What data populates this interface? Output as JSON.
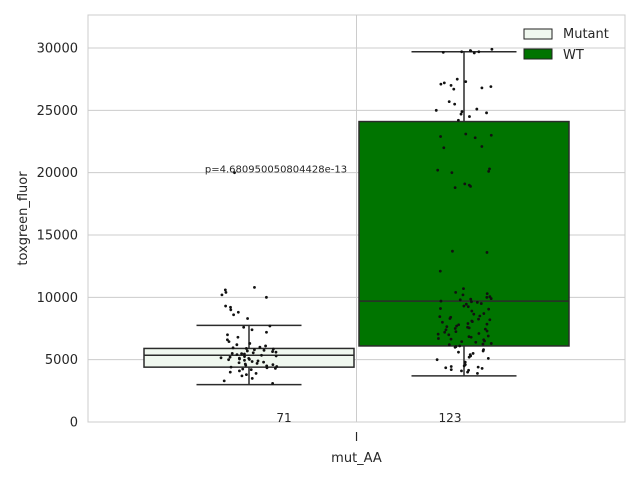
{
  "chart_data": {
    "type": "box",
    "title": "",
    "xlabel": "mut_AA",
    "ylabel": "toxgreen_fluor",
    "categories": [
      "I"
    ],
    "ylim": [
      0,
      32500
    ],
    "yticks": [
      0,
      5000,
      10000,
      15000,
      20000,
      25000,
      30000
    ],
    "grid": true,
    "legend": {
      "placement": "top-right",
      "entries": [
        "Mutant",
        "WT"
      ]
    },
    "annotation": "p=4.680950050804428e-13",
    "series": [
      {
        "name": "Mutant",
        "color": "#f0f8ef",
        "count_label": "71",
        "whisker_low": 3000,
        "q1": 4400,
        "median": 5350,
        "q3": 5900,
        "whisker_high": 7750,
        "points": [
          3100,
          3300,
          3500,
          3700,
          3800,
          3900,
          4000,
          4100,
          4200,
          4300,
          4350,
          4400,
          4450,
          4500,
          4550,
          4600,
          4650,
          4700,
          4750,
          4800,
          4850,
          4900,
          4950,
          5000,
          5050,
          5100,
          5150,
          5200,
          5250,
          5300,
          5350,
          5400,
          5450,
          5500,
          5550,
          5600,
          5650,
          5700,
          5750,
          5800,
          5850,
          5900,
          5950,
          6000,
          6100,
          6200,
          6300,
          6450,
          6600,
          6800,
          7000,
          7200,
          7400,
          7600,
          7700,
          8300,
          8600,
          8800,
          9000,
          9200,
          9300,
          10000,
          10200,
          10400,
          10600,
          10800,
          20000,
          4250,
          5120,
          5480,
          5020
        ]
      },
      {
        "name": "WT",
        "color": "#007400",
        "count_label": "123",
        "whisker_low": 3700,
        "q1": 6100,
        "median": 9700,
        "q3": 24100,
        "whisker_high": 29700,
        "points": [
          3900,
          4000,
          4100,
          4200,
          4300,
          4400,
          4500,
          4600,
          4800,
          5000,
          5200,
          5400,
          5600,
          5800,
          6000,
          6100,
          6200,
          6300,
          6400,
          6500,
          6600,
          6700,
          6800,
          6900,
          7000,
          7100,
          7200,
          7300,
          7400,
          7500,
          7600,
          7700,
          7800,
          7900,
          8000,
          8100,
          8200,
          8300,
          8400,
          8500,
          8700,
          8900,
          9100,
          9300,
          9500,
          9600,
          9700,
          9800,
          9900,
          10000,
          10200,
          10400,
          10700,
          12100,
          13600,
          13700,
          18800,
          18900,
          19000,
          19100,
          20000,
          20100,
          20300,
          22000,
          22800,
          22900,
          23000,
          23100,
          24200,
          24500,
          24700,
          24900,
          25000,
          25100,
          25500,
          25700,
          26800,
          26900,
          27000,
          27100,
          27300,
          27500,
          29600,
          29700,
          29750,
          29800,
          29650,
          29700,
          4150,
          4350,
          4450,
          5100,
          5300,
          5500,
          5700,
          6050,
          6250,
          6450,
          6650,
          6850,
          7050,
          7250,
          7450,
          7650,
          7850,
          8050,
          8250,
          8450,
          8650,
          9050,
          9250,
          9450,
          9650,
          9850,
          10050,
          10300,
          20200,
          22100,
          24800,
          26700,
          27200,
          29900,
          7550
        ]
      }
    ]
  }
}
